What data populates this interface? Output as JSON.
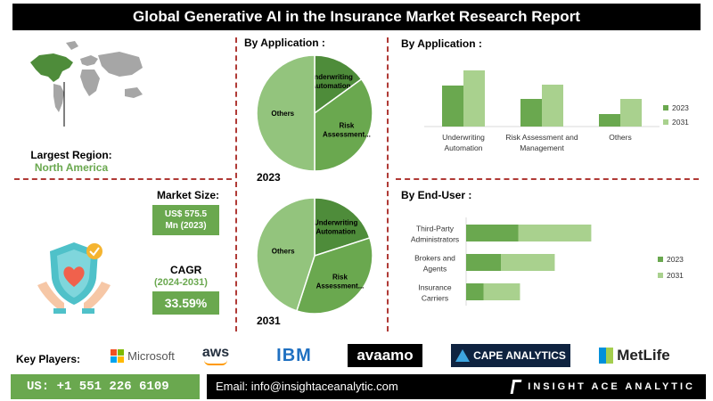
{
  "title": "Global Generative AI in the Insurance Market Research Report",
  "left_panel": {
    "largest_region_label": "Largest Region:",
    "largest_region_value": "North America",
    "market_size_label": "Market Size:",
    "market_size_value_line1": "US$ 575.5",
    "market_size_value_line2": "Mn (2023)",
    "cagr_label": "CAGR",
    "cagr_period": "(2024-2031)",
    "cagr_value": "33.59%"
  },
  "pie_section_title": "By Application :",
  "bar_app_title": "By Application :",
  "end_user_title": "By End-User :",
  "chart_data": [
    {
      "type": "pie",
      "year": "2023",
      "slices": [
        {
          "label_line1": "Underwriting",
          "label_line2": "Automation",
          "value": 15,
          "color": "#4e8c3a"
        },
        {
          "label_line1": "Risk",
          "label_line2": "Assessment...",
          "value": 35,
          "color": "#6aa84f"
        },
        {
          "label_line1": "Others",
          "label_line2": "",
          "value": 50,
          "color": "#93c47d"
        }
      ]
    },
    {
      "type": "pie",
      "year": "2031",
      "slices": [
        {
          "label_line1": "Underwriting",
          "label_line2": "Automation",
          "value": 20,
          "color": "#4e8c3a"
        },
        {
          "label_line1": "Risk",
          "label_line2": "Assessment...",
          "value": 35,
          "color": "#6aa84f"
        },
        {
          "label_line1": "Others",
          "label_line2": "",
          "value": 45,
          "color": "#93c47d"
        }
      ]
    },
    {
      "type": "bar",
      "categories": [
        [
          "Underwriting",
          "Automation"
        ],
        [
          "Risk Assessment and",
          "Management"
        ],
        [
          "Others"
        ]
      ],
      "series": [
        {
          "name": "2023",
          "values": [
            4.6,
            3.1,
            1.4
          ],
          "color": "#6aa84f"
        },
        {
          "name": "2031",
          "values": [
            6.3,
            4.7,
            3.1
          ],
          "color": "#a9d18e"
        }
      ],
      "ylim": [
        0,
        7
      ],
      "legend": "right"
    },
    {
      "type": "bar",
      "orientation": "horizontal",
      "stacked": true,
      "categories": [
        [
          "Third-Party",
          "Administrators"
        ],
        [
          "Brokers and",
          "Agents"
        ],
        [
          "Insurance",
          "Carriers"
        ]
      ],
      "series": [
        {
          "name": "2023",
          "values": [
            3.0,
            2.0,
            1.0
          ],
          "color": "#6aa84f"
        },
        {
          "name": "2031",
          "values": [
            4.2,
            3.1,
            2.1
          ],
          "color": "#a9d18e"
        }
      ],
      "xlim": [
        0,
        10
      ],
      "legend": "right"
    }
  ],
  "key_players_label": "Key Players:",
  "logos": {
    "microsoft": "Microsoft",
    "aws": "aws",
    "ibm": "IBM",
    "avaamo": "avaamo",
    "cape": "CAPE ANALYTICS",
    "metlife": "MetLife"
  },
  "footer": {
    "phone": "US: +1 551 226 6109",
    "email": "Email: info@insightaceanalytic.com",
    "brand": "INSIGHT ACE ANALYTIC"
  },
  "colors": {
    "accent_green": "#6aa84f",
    "light_green": "#a9d18e",
    "dark_green": "#4e8c3a",
    "divider_red": "#b03a36"
  }
}
